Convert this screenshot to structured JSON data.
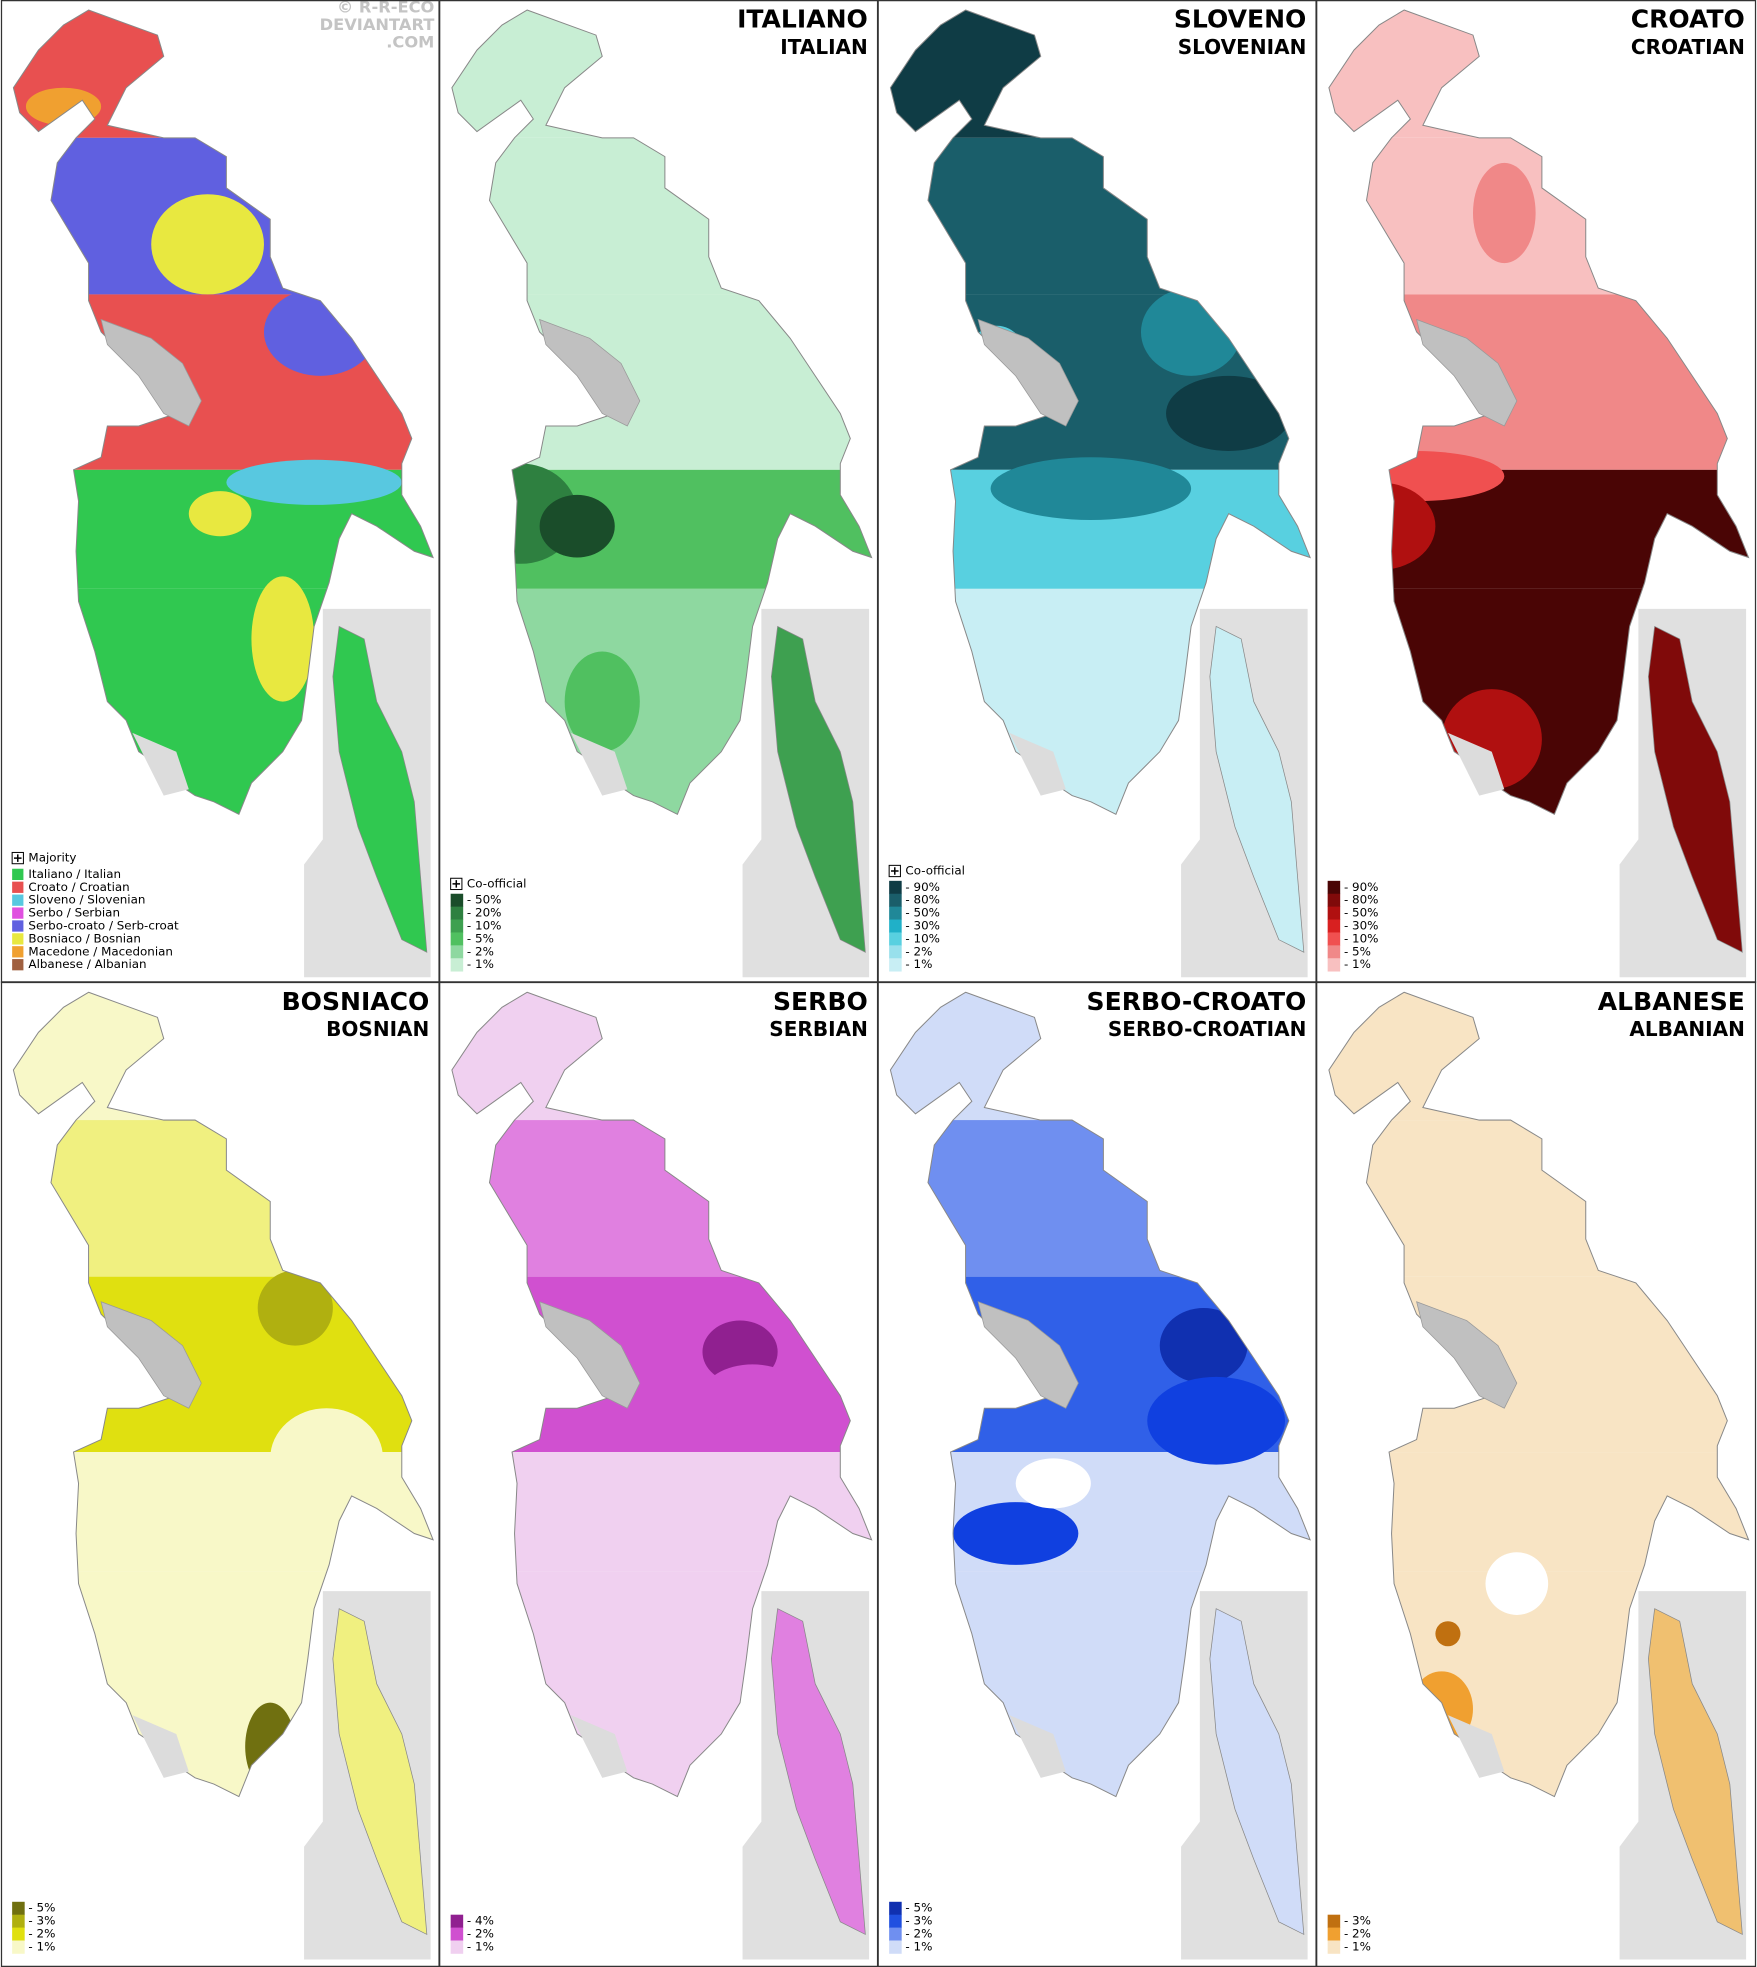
{
  "watermark": [
    "© R-R-ECO",
    "DEVIANTART",
    ".COM"
  ],
  "panels": [
    {
      "legend": {
        "marker": "Majority",
        "items": [
          {
            "label": "Italiano / Italian",
            "color": "#30c850"
          },
          {
            "label": "Croato / Croatian",
            "color": "#e85050"
          },
          {
            "label": "Sloveno / Slovenian",
            "color": "#58c8e0"
          },
          {
            "label": "Serbo / Serbian",
            "color": "#e050e0"
          },
          {
            "label": "Serbo-croato / Serb-croat",
            "color": "#6060e0"
          },
          {
            "label": "Bosniaco / Bosnian",
            "color": "#e8e840"
          },
          {
            "label": "Macedone / Macedonian",
            "color": "#f0a030"
          },
          {
            "label": "Albanese / Albanian",
            "color": "#a06040"
          }
        ]
      }
    },
    {
      "title": "ITALIANO",
      "subtitle": "ITALIAN",
      "legend": {
        "marker": "Co-official",
        "items": [
          {
            "label": "- 50%",
            "color": "#1a4d2a"
          },
          {
            "label": "- 20%",
            "color": "#2e8040"
          },
          {
            "label": "- 10%",
            "color": "#3ea050"
          },
          {
            "label": "- 5%",
            "color": "#50c060"
          },
          {
            "label": "- 2%",
            "color": "#8ed8a0"
          },
          {
            "label": "- 1%",
            "color": "#c8eed4"
          }
        ]
      }
    },
    {
      "title": "SLOVENO",
      "subtitle": "SLOVENIAN",
      "legend": {
        "marker": "Co-official",
        "items": [
          {
            "label": "- 90%",
            "color": "#0f3c45"
          },
          {
            "label": "- 80%",
            "color": "#1a5e6a"
          },
          {
            "label": "- 50%",
            "color": "#208898"
          },
          {
            "label": "- 30%",
            "color": "#20b0c8"
          },
          {
            "label": "- 10%",
            "color": "#58d0e0"
          },
          {
            "label": "- 2%",
            "color": "#98e0ec"
          },
          {
            "label": "- 1%",
            "color": "#c8eef4"
          }
        ]
      }
    },
    {
      "title": "CROATO",
      "subtitle": "CROATIAN",
      "legend": {
        "items": [
          {
            "label": "- 90%",
            "color": "#4a0505"
          },
          {
            "label": "- 80%",
            "color": "#800a0a"
          },
          {
            "label": "- 50%",
            "color": "#b01010"
          },
          {
            "label": "- 30%",
            "color": "#d82020"
          },
          {
            "label": "- 10%",
            "color": "#f05050"
          },
          {
            "label": "- 5%",
            "color": "#f08888"
          },
          {
            "label": "- 1%",
            "color": "#f8c0c0"
          }
        ]
      }
    },
    {
      "title": "BOSNIACO",
      "subtitle": "BOSNIAN",
      "legend": {
        "items": [
          {
            "label": "- 5%",
            "color": "#707010"
          },
          {
            "label": "- 3%",
            "color": "#b0b010"
          },
          {
            "label": "- 2%",
            "color": "#e0e010"
          },
          {
            "label": "- 1%",
            "color": "#f8f8c8"
          }
        ]
      }
    },
    {
      "title": "SERBO",
      "subtitle": "SERBIAN",
      "legend": {
        "items": [
          {
            "label": "- 4%",
            "color": "#902090"
          },
          {
            "label": "- 2%",
            "color": "#d050d0"
          },
          {
            "label": "- 1%",
            "color": "#f0d0f0"
          }
        ]
      }
    },
    {
      "title": "SERBO-CROATO",
      "subtitle": "SERBO-CROATIAN",
      "legend": {
        "items": [
          {
            "label": "- 5%",
            "color": "#1030b0"
          },
          {
            "label": "- 3%",
            "color": "#2050e0"
          },
          {
            "label": "- 2%",
            "color": "#6f8ff0"
          },
          {
            "label": "- 1%",
            "color": "#d0dcf8"
          }
        ]
      }
    },
    {
      "title": "ALBANESE",
      "subtitle": "ALBANIAN",
      "legend": {
        "items": [
          {
            "label": "- 3%",
            "color": "#c07010"
          },
          {
            "label": "- 2%",
            "color": "#f0a030"
          },
          {
            "label": "- 1%",
            "color": "#f8e4c4"
          }
        ]
      }
    }
  ]
}
